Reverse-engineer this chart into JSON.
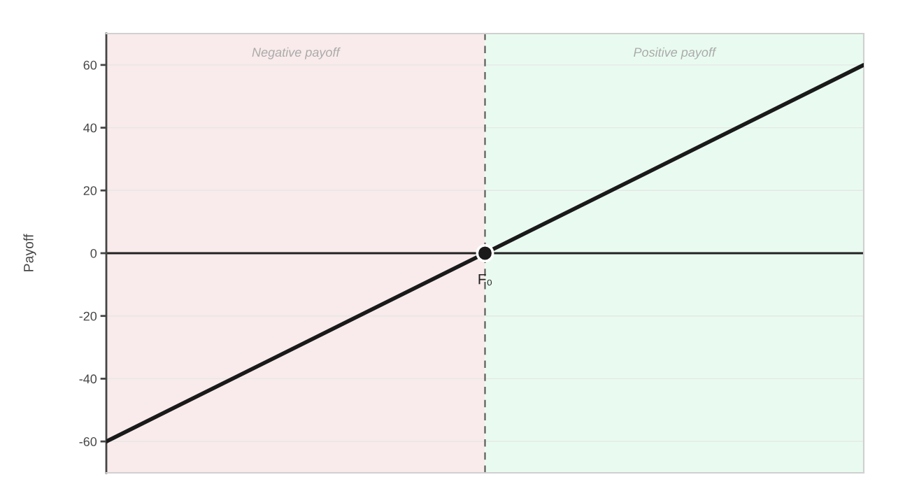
{
  "chart_data": {
    "type": "line",
    "ylabel": "Payoff",
    "categories": [
      null,
      null,
      null
    ],
    "ylim": [
      -70,
      70
    ],
    "yticks": [
      -60,
      -40,
      -20,
      0,
      20,
      40,
      60
    ],
    "grid": "y",
    "marker": "none",
    "line_style": "solid",
    "series": [
      {
        "color": "#1a1a1a",
        "values": [
          -60,
          0,
          60
        ]
      },
      {
        "type": "scatter",
        "color": "#1a1a1a",
        "values": [
          null,
          0,
          null
        ],
        "marker": "circle"
      }
    ],
    "ref_lines": [
      {
        "axis": "y",
        "value": 0,
        "color": "#222222",
        "line_style": "solid"
      }
    ],
    "annotations": [
      "Negative payoff",
      "Positive payoff",
      {
        "text": "F₀",
        "y": 0
      }
    ]
  }
}
